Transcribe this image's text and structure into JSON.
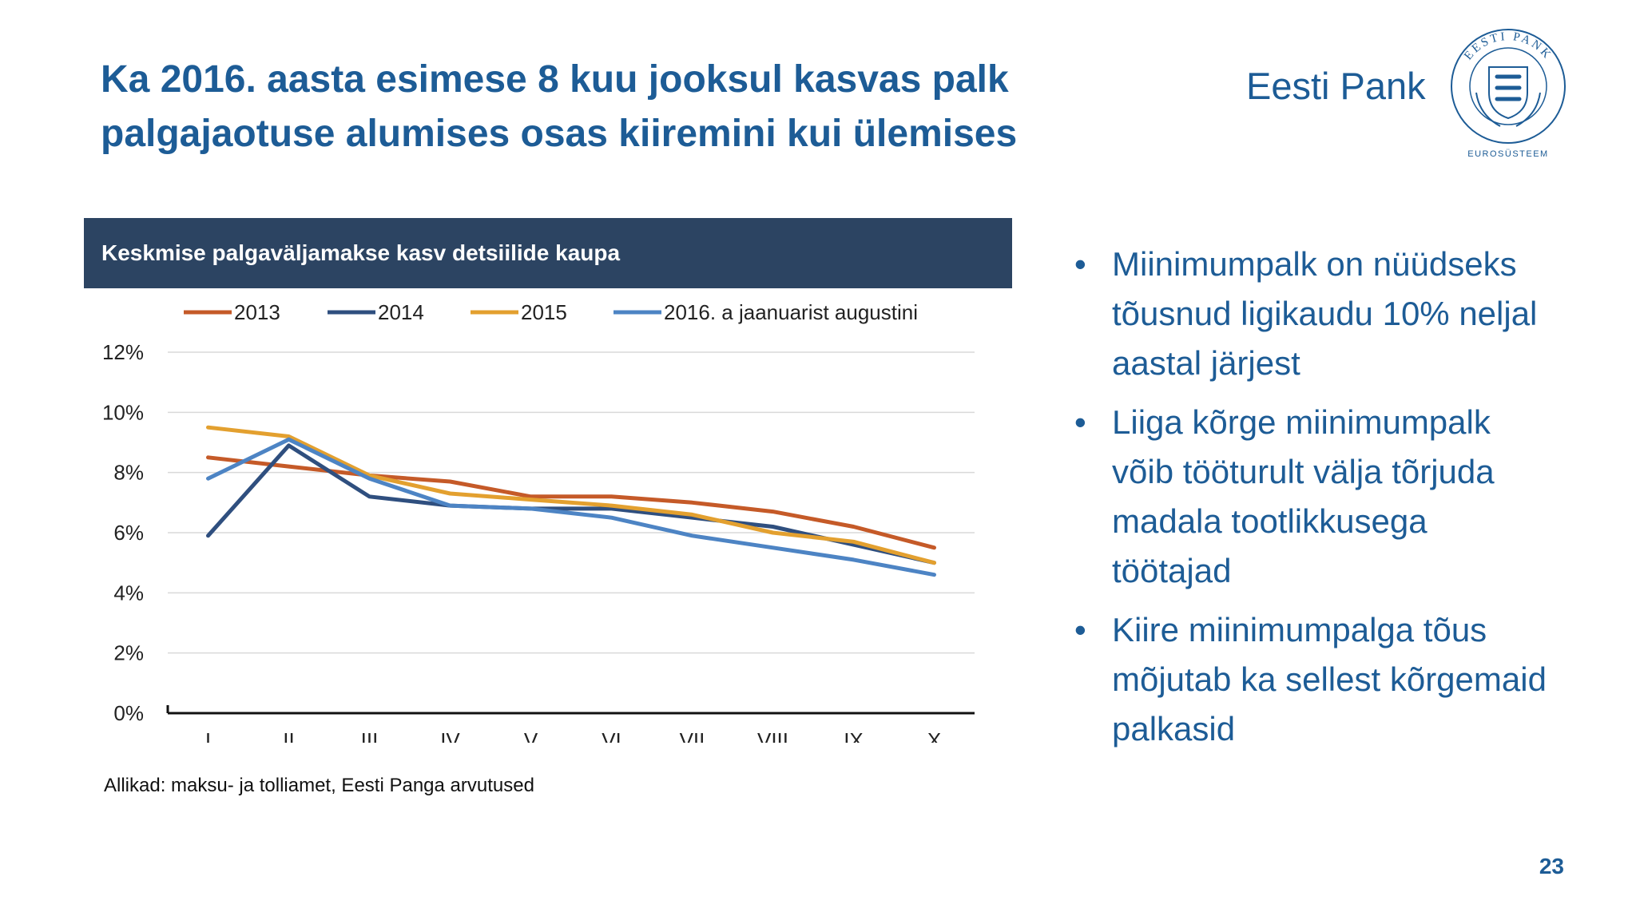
{
  "slide": {
    "title_lines": [
      "Ka 2016. aasta esimese 8 kuu jooksul kasvas palk",
      "palgajaotuse alumises osas kiiremini kui ülemises"
    ],
    "brand": "Eesti Pank",
    "logo": {
      "ring_top": "EESTI PANK",
      "ring_bottom": "EUROSÜSTEEM",
      "icon": "seal-logo-icon"
    },
    "chart_header": "Keskmise palgaväljamakse kasv detsiilide kaupa",
    "source": "Allikad: maksu- ja tolliamet, Eesti Panga arvutused",
    "bullets": [
      {
        "lines": [
          "Miinimumpalk on nüüdseks",
          "tõusnud ligikaudu 10% neljal",
          "aastal järjest"
        ]
      },
      {
        "lines": [
          "Liiga kõrge miinimumpalk",
          "võib tööturult välja tõrjuda",
          "madala tootlikkusega",
          "töötajad"
        ]
      },
      {
        "lines": [
          "Kiire miinimumpalga tõus",
          "mõjutab ka sellest kõrgemaid",
          "palkasid"
        ]
      }
    ],
    "page_number": "23"
  },
  "colors": {
    "title": "#1d5c96",
    "header_bg": "#2c4462",
    "series": [
      "#c55a28",
      "#2f4f7f",
      "#e3a02f",
      "#4d84c4"
    ]
  },
  "chart_data": {
    "type": "line",
    "categories": [
      "I",
      "II",
      "III",
      "IV",
      "V",
      "VI",
      "VII",
      "VIII",
      "IX",
      "X"
    ],
    "series": [
      {
        "name": "2013",
        "color": "#c55a28",
        "values": [
          8.5,
          8.2,
          7.9,
          7.7,
          7.2,
          7.2,
          7.0,
          6.7,
          6.2,
          5.5
        ]
      },
      {
        "name": "2014",
        "color": "#2f4f7f",
        "values": [
          5.9,
          8.9,
          7.2,
          6.9,
          6.8,
          6.8,
          6.5,
          6.2,
          5.6,
          5.0
        ]
      },
      {
        "name": "2015",
        "color": "#e3a02f",
        "values": [
          9.5,
          9.2,
          7.9,
          7.3,
          7.1,
          6.9,
          6.6,
          6.0,
          5.7,
          5.0
        ]
      },
      {
        "name": "2016. a jaanuarist augustini",
        "color": "#4d84c4",
        "values": [
          7.8,
          9.1,
          7.8,
          6.9,
          6.8,
          6.5,
          5.9,
          5.5,
          5.1,
          4.6
        ]
      }
    ],
    "y_ticks": [
      "0%",
      "2%",
      "4%",
      "6%",
      "8%",
      "10%",
      "12%"
    ],
    "ylim": [
      0,
      12
    ],
    "grid": true,
    "legend_position": "top"
  }
}
